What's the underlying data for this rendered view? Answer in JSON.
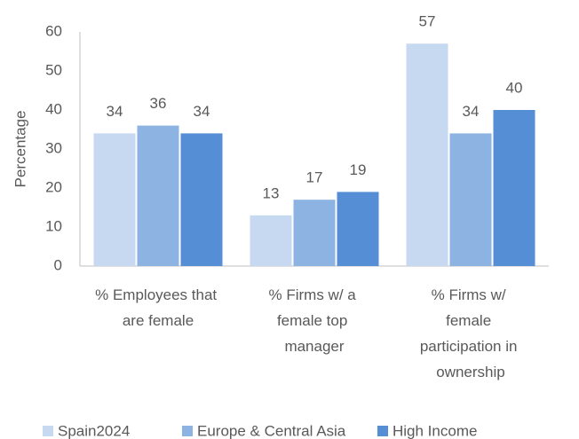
{
  "chart_data": {
    "type": "bar",
    "y_label": "Percentage",
    "categories": [
      "% Employees that are female",
      "% Firms w/ a female top manager",
      "% Firms w/ female participation in ownership"
    ],
    "series": [
      {
        "name": "Spain2024",
        "color": "#c6d9f1",
        "values": [
          34,
          13,
          57
        ]
      },
      {
        "name": "Europe & Central Asia",
        "color": "#8db3e2",
        "values": [
          36,
          17,
          34
        ]
      },
      {
        "name": "High Income",
        "color": "#558ed5",
        "values": [
          34,
          19,
          40
        ]
      }
    ],
    "ylim": [
      0,
      60
    ],
    "yticks": [
      0,
      10,
      20,
      30,
      40,
      50,
      60
    ],
    "grid": false,
    "legend": "bottom"
  }
}
